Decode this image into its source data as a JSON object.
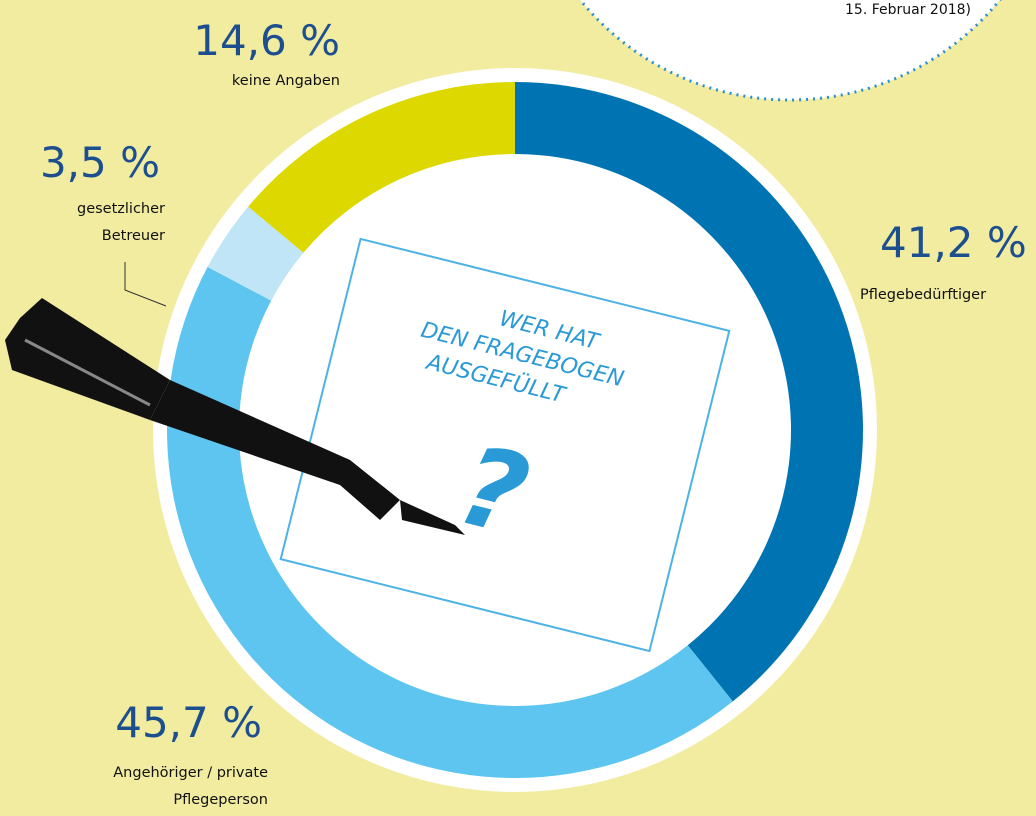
{
  "chart_data": {
    "type": "donut",
    "title": "WER HAT DEN FRAGEBOGEN AUSGEFÜLLT",
    "center_symbol": "?",
    "annotation": "15. Februar 2018)",
    "categories": [
      "Pflegebedürftiger",
      "Angehöriger / private Pflegeperson",
      "gesetzlicher Betreuer",
      "keine Angaben"
    ],
    "values": [
      41.2,
      45.7,
      3.5,
      14.6
    ],
    "value_labels": [
      "41,2 %",
      "45,7 %",
      "3,5 %",
      "14,6 %"
    ],
    "colors": [
      "#0074b3",
      "#5dc5f0",
      "#bfe5f7",
      "#dcd800"
    ]
  }
}
